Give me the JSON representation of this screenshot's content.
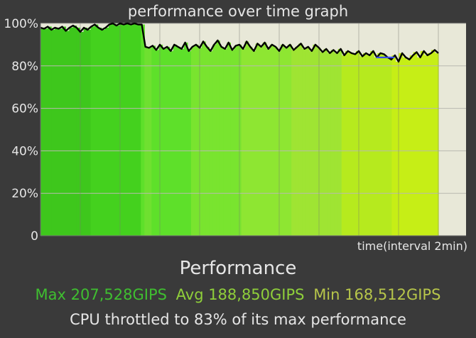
{
  "chart_data": {
    "type": "area",
    "title": "performance over time graph",
    "xlabel": "time(interval 2min)",
    "ylabel": "",
    "y_ticks": [
      "0",
      "20%",
      "40%",
      "60%",
      "80%",
      "100%"
    ],
    "ylim": [
      0,
      100
    ],
    "grid": true,
    "bar_colors": [
      "#3ec71c",
      "#44d11e",
      "#5ee02a",
      "#79e42f",
      "#8ee632",
      "#9fe433",
      "#b6ea1e",
      "#c6ee16"
    ],
    "line_color": "#000000",
    "plot_background": "#e8e8d8",
    "series": [
      {
        "values": [
          98,
          97.5,
          98.5,
          97,
          98,
          97.5,
          98.5,
          96.5,
          98,
          99,
          98,
          96,
          98,
          97,
          98.5,
          99.5,
          98,
          97,
          98,
          99.5,
          100,
          99,
          100,
          99.5,
          100,
          99.5,
          100,
          99.5,
          99.5,
          89,
          88.5,
          89.5,
          87.5,
          90,
          88,
          89,
          87,
          90,
          89,
          88,
          91,
          87,
          89,
          90,
          88.5,
          91.5,
          89,
          87,
          90,
          92,
          89,
          88,
          91,
          87.5,
          89.5,
          90,
          88,
          91.5,
          89,
          87,
          90.5,
          89,
          91,
          88,
          90,
          89,
          87,
          90,
          88.5,
          90,
          87.5,
          89,
          90.5,
          88,
          89,
          87,
          90,
          88.5,
          86.5,
          88,
          86,
          87.5,
          86,
          88,
          85,
          87,
          86,
          85.5,
          87,
          84.5,
          86,
          85,
          87,
          84,
          86,
          85.5,
          84,
          83,
          85,
          82,
          86,
          84,
          83,
          85,
          86.5,
          84,
          87,
          85,
          86,
          87.5,
          86
        ]
      }
    ],
    "marker": {
      "value": 84,
      "color": "#3a4de6"
    }
  },
  "heading": "Performance",
  "stats": {
    "max": {
      "text": "Max 207,528GIPS",
      "color": "#3fbf30"
    },
    "avg": {
      "text": "Avg 188,850GIPS",
      "color": "#8fcf3a"
    },
    "min": {
      "text": "Min 168,512GIPS",
      "color": "#b7c64a"
    }
  },
  "throttle_text": "CPU throttled to 83% of its max performance"
}
